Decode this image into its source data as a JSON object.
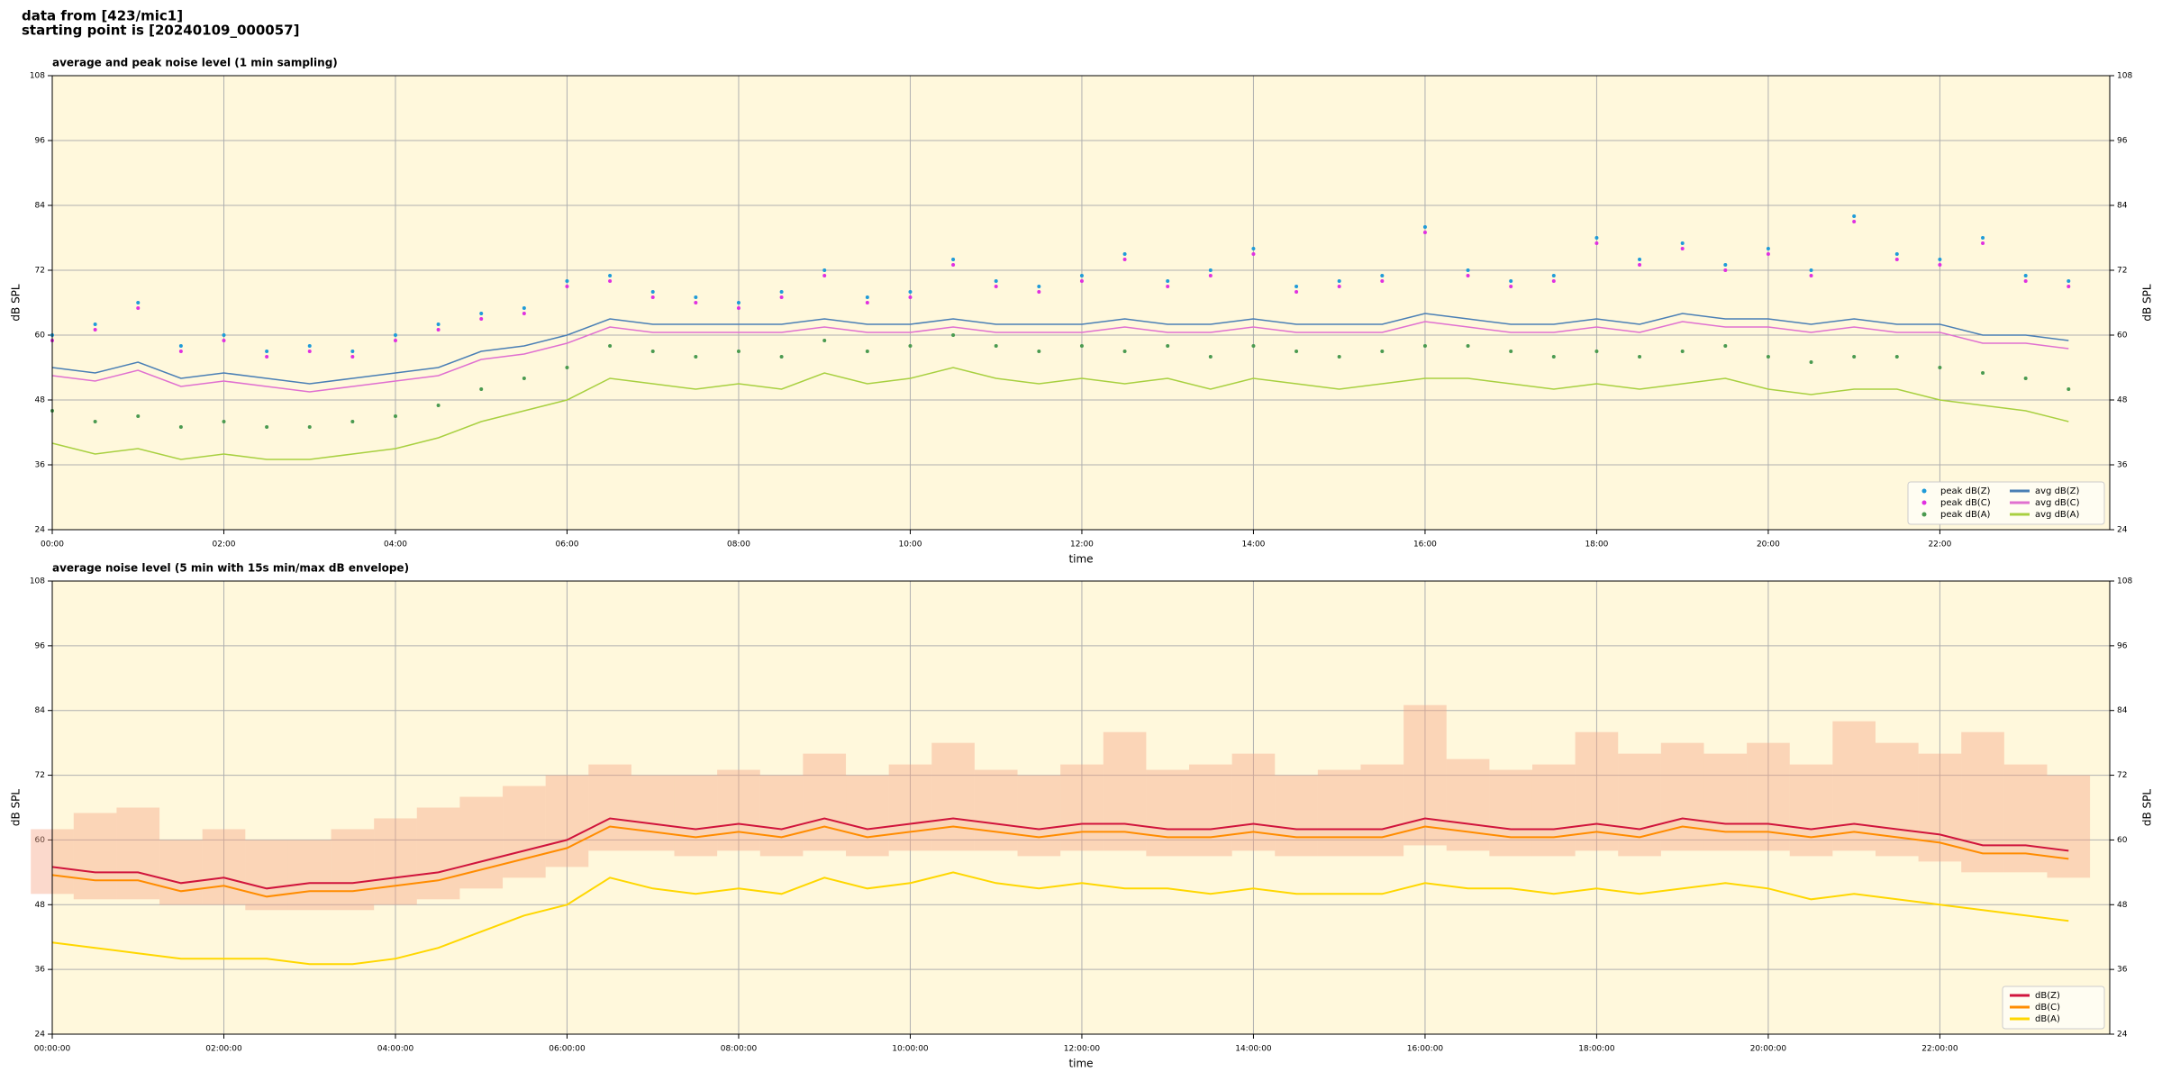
{
  "header": [
    "data from [423/mic1]",
    "starting point is [20240109_000057]"
  ],
  "chart_data": [
    {
      "type": "line",
      "title": "average and peak noise level (1 min sampling)",
      "xlabel": "time",
      "ylabel": "dB SPL",
      "x": [
        0,
        0.5,
        1,
        1.5,
        2,
        2.5,
        3,
        3.5,
        4,
        4.5,
        5,
        5.5,
        6,
        6.5,
        7,
        7.5,
        8,
        8.5,
        9,
        9.5,
        10,
        10.5,
        11,
        11.5,
        12,
        12.5,
        13,
        13.5,
        14,
        14.5,
        15,
        15.5,
        16,
        16.5,
        17,
        17.5,
        18,
        18.5,
        19,
        19.5,
        20,
        20.5,
        21,
        21.5,
        22,
        22.5,
        23,
        23.5
      ],
      "series": [
        {
          "name": "peak dB(Z)",
          "kind": "scatter",
          "color": "#1f9bd8",
          "values": [
            60,
            62,
            66,
            58,
            60,
            57,
            58,
            57,
            60,
            62,
            64,
            65,
            70,
            71,
            68,
            67,
            66,
            68,
            72,
            67,
            68,
            74,
            70,
            69,
            71,
            75,
            70,
            72,
            76,
            69,
            70,
            71,
            80,
            72,
            70,
            71,
            78,
            74,
            77,
            73,
            76,
            72,
            82,
            75,
            74,
            78,
            71,
            70
          ]
        },
        {
          "name": "peak dB(C)",
          "kind": "scatter",
          "color": "#e030e0",
          "values": [
            59,
            61,
            65,
            57,
            59,
            56,
            57,
            56,
            59,
            61,
            63,
            64,
            69,
            70,
            67,
            66,
            65,
            67,
            71,
            66,
            67,
            73,
            69,
            68,
            70,
            74,
            69,
            71,
            75,
            68,
            69,
            70,
            79,
            71,
            69,
            70,
            77,
            73,
            76,
            72,
            75,
            71,
            81,
            74,
            73,
            77,
            70,
            69
          ]
        },
        {
          "name": "peak dB(A)",
          "kind": "scatter",
          "color": "#4a9a50",
          "values": [
            46,
            44,
            45,
            43,
            44,
            43,
            43,
            44,
            45,
            47,
            50,
            52,
            54,
            58,
            57,
            56,
            57,
            56,
            59,
            57,
            58,
            60,
            58,
            57,
            58,
            57,
            58,
            56,
            58,
            57,
            56,
            57,
            58,
            58,
            57,
            56,
            57,
            56,
            57,
            58,
            56,
            55,
            56,
            56,
            54,
            53,
            52,
            50
          ]
        },
        {
          "name": "avg dB(Z)",
          "kind": "line",
          "color": "#4a7fb5",
          "values": [
            54,
            53,
            55,
            52,
            53,
            52,
            51,
            52,
            53,
            54,
            57,
            58,
            60,
            63,
            62,
            62,
            62,
            62,
            63,
            62,
            62,
            63,
            62,
            62,
            62,
            63,
            62,
            62,
            63,
            62,
            62,
            62,
            64,
            63,
            62,
            62,
            63,
            62,
            64,
            63,
            63,
            62,
            63,
            62,
            62,
            60,
            60,
            59
          ]
        },
        {
          "name": "avg dB(C)",
          "kind": "line",
          "color": "#e070d0",
          "values": [
            52.5,
            51.5,
            53.5,
            50.5,
            51.5,
            50.5,
            49.5,
            50.5,
            51.5,
            52.5,
            55.5,
            56.5,
            58.5,
            61.5,
            60.5,
            60.5,
            60.5,
            60.5,
            61.5,
            60.5,
            60.5,
            61.5,
            60.5,
            60.5,
            60.5,
            61.5,
            60.5,
            60.5,
            61.5,
            60.5,
            60.5,
            60.5,
            62.5,
            61.5,
            60.5,
            60.5,
            61.5,
            60.5,
            62.5,
            61.5,
            61.5,
            60.5,
            61.5,
            60.5,
            60.5,
            58.5,
            58.5,
            57.5
          ]
        },
        {
          "name": "avg dB(A)",
          "kind": "line",
          "color": "#a8d040",
          "values": [
            40,
            38,
            39,
            37,
            38,
            37,
            37,
            38,
            39,
            41,
            44,
            46,
            48,
            52,
            51,
            50,
            51,
            50,
            53,
            51,
            52,
            54,
            52,
            51,
            52,
            51,
            52,
            50,
            52,
            51,
            50,
            51,
            52,
            52,
            51,
            50,
            51,
            50,
            51,
            52,
            50,
            49,
            50,
            50,
            48,
            47,
            46,
            44
          ]
        }
      ],
      "xlim": [
        0,
        23.98
      ],
      "xticks": [
        {
          "value": 0,
          "label": "00:00"
        },
        {
          "value": 2,
          "label": "02:00"
        },
        {
          "value": 4,
          "label": "04:00"
        },
        {
          "value": 6,
          "label": "06:00"
        },
        {
          "value": 8,
          "label": "08:00"
        },
        {
          "value": 10,
          "label": "10:00"
        },
        {
          "value": 12,
          "label": "12:00"
        },
        {
          "value": 14,
          "label": "14:00"
        },
        {
          "value": 16,
          "label": "16:00"
        },
        {
          "value": 18,
          "label": "18:00"
        },
        {
          "value": 20,
          "label": "20:00"
        },
        {
          "value": 22,
          "label": "22:00"
        }
      ],
      "ylim": [
        24,
        108
      ],
      "yticks": [
        24,
        36,
        48,
        60,
        72,
        84,
        96,
        108
      ],
      "grid": true,
      "legend": "lower right",
      "legend_columns": 2
    },
    {
      "type": "line",
      "title": "average noise level (5 min with 15s min/max dB envelope)",
      "xlabel": "time",
      "ylabel": "dB SPL",
      "x": [
        0,
        0.5,
        1,
        1.5,
        2,
        2.5,
        3,
        3.5,
        4,
        4.5,
        5,
        5.5,
        6,
        6.5,
        7,
        7.5,
        8,
        8.5,
        9,
        9.5,
        10,
        10.5,
        11,
        11.5,
        12,
        12.5,
        13,
        13.5,
        14,
        14.5,
        15,
        15.5,
        16,
        16.5,
        17,
        17.5,
        18,
        18.5,
        19,
        19.5,
        20,
        20.5,
        21,
        21.5,
        22,
        22.5,
        23,
        23.5
      ],
      "band": {
        "color": "#f4a080",
        "upper": [
          62,
          65,
          66,
          60,
          62,
          60,
          60,
          62,
          64,
          66,
          68,
          70,
          72,
          74,
          72,
          72,
          73,
          72,
          76,
          72,
          74,
          78,
          73,
          72,
          74,
          80,
          73,
          74,
          76,
          72,
          73,
          74,
          85,
          75,
          73,
          74,
          80,
          76,
          78,
          76,
          78,
          74,
          82,
          78,
          76,
          80,
          74,
          72
        ],
        "lower": [
          50,
          49,
          49,
          48,
          48,
          47,
          47,
          47,
          48,
          49,
          51,
          53,
          55,
          58,
          58,
          57,
          58,
          57,
          58,
          57,
          58,
          58,
          58,
          57,
          58,
          58,
          57,
          57,
          58,
          57,
          57,
          57,
          59,
          58,
          57,
          57,
          58,
          57,
          58,
          58,
          58,
          57,
          58,
          57,
          56,
          54,
          54,
          53
        ]
      },
      "series": [
        {
          "name": "dB(Z)",
          "kind": "line",
          "color": "#d0143c",
          "values": [
            55,
            54,
            54,
            52,
            53,
            51,
            52,
            52,
            53,
            54,
            56,
            58,
            60,
            64,
            63,
            62,
            63,
            62,
            64,
            62,
            63,
            64,
            63,
            62,
            63,
            63,
            62,
            62,
            63,
            62,
            62,
            62,
            64,
            63,
            62,
            62,
            63,
            62,
            64,
            63,
            63,
            62,
            63,
            62,
            61,
            59,
            59,
            58
          ]
        },
        {
          "name": "dB(C)",
          "kind": "line",
          "color": "#ff8c00",
          "values": [
            53.5,
            52.5,
            52.5,
            50.5,
            51.5,
            49.5,
            50.5,
            50.5,
            51.5,
            52.5,
            54.5,
            56.5,
            58.5,
            62.5,
            61.5,
            60.5,
            61.5,
            60.5,
            62.5,
            60.5,
            61.5,
            62.5,
            61.5,
            60.5,
            61.5,
            61.5,
            60.5,
            60.5,
            61.5,
            60.5,
            60.5,
            60.5,
            62.5,
            61.5,
            60.5,
            60.5,
            61.5,
            60.5,
            62.5,
            61.5,
            61.5,
            60.5,
            61.5,
            60.5,
            59.5,
            57.5,
            57.5,
            56.5
          ]
        },
        {
          "name": "dB(A)",
          "kind": "line",
          "color": "#ffd700",
          "values": [
            41,
            40,
            39,
            38,
            38,
            38,
            37,
            37,
            38,
            40,
            43,
            46,
            48,
            53,
            51,
            50,
            51,
            50,
            53,
            51,
            52,
            54,
            52,
            51,
            52,
            51,
            51,
            50,
            51,
            50,
            50,
            50,
            52,
            51,
            51,
            50,
            51,
            50,
            51,
            52,
            51,
            49,
            50,
            49,
            48,
            47,
            46,
            45
          ]
        }
      ],
      "xlim": [
        0,
        23.98
      ],
      "xticks": [
        {
          "value": 0,
          "label": "00:00:00"
        },
        {
          "value": 2,
          "label": "02:00:00"
        },
        {
          "value": 4,
          "label": "04:00:00"
        },
        {
          "value": 6,
          "label": "06:00:00"
        },
        {
          "value": 8,
          "label": "08:00:00"
        },
        {
          "value": 10,
          "label": "10:00:00"
        },
        {
          "value": 12,
          "label": "12:00:00"
        },
        {
          "value": 14,
          "label": "14:00:00"
        },
        {
          "value": 16,
          "label": "16:00:00"
        },
        {
          "value": 18,
          "label": "18:00:00"
        },
        {
          "value": 20,
          "label": "20:00:00"
        },
        {
          "value": 22,
          "label": "22:00:00"
        }
      ],
      "ylim": [
        24,
        108
      ],
      "yticks": [
        24,
        36,
        48,
        60,
        72,
        84,
        96,
        108
      ],
      "grid": true,
      "legend": "lower right",
      "legend_columns": 1
    }
  ]
}
